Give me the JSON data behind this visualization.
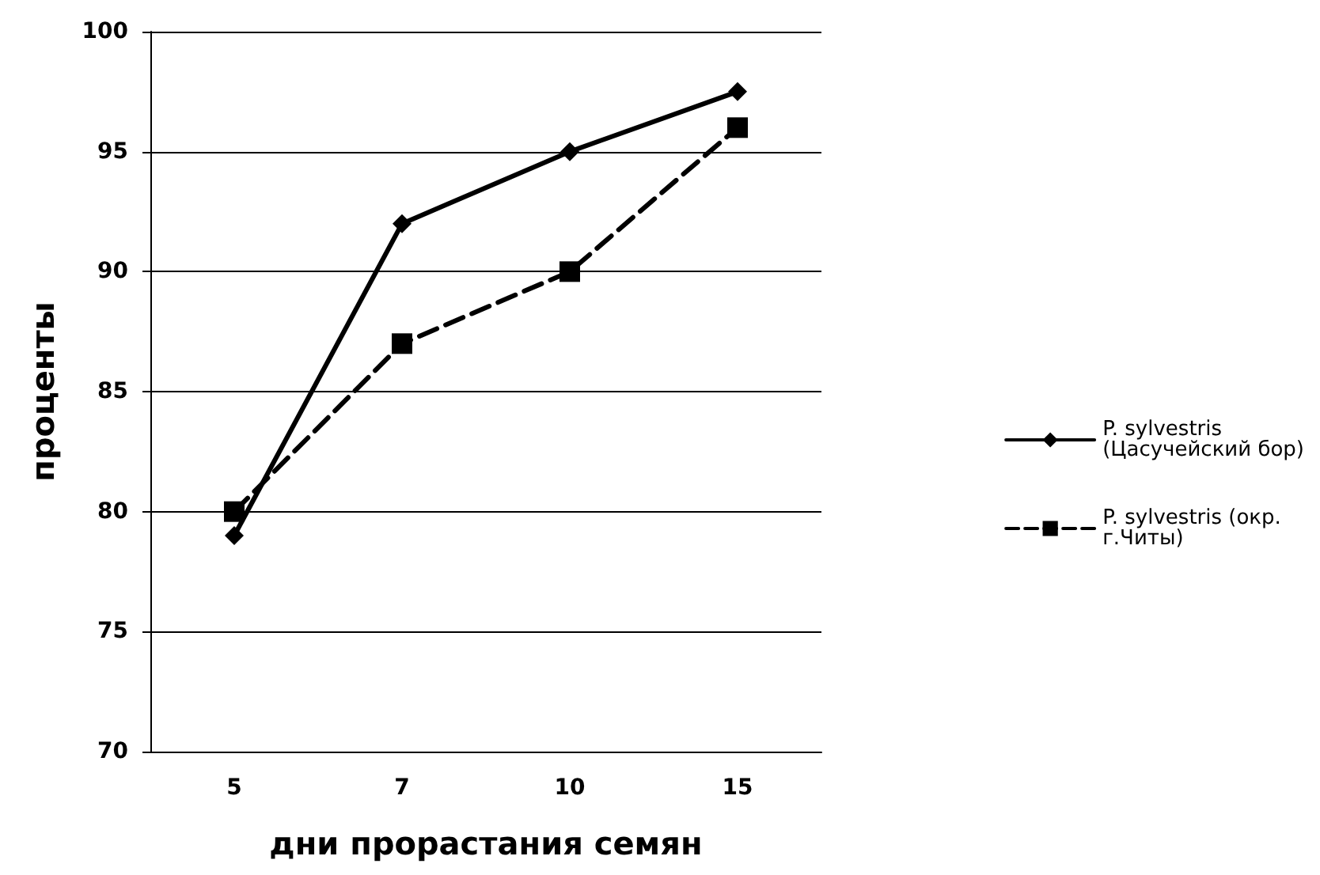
{
  "chart_data": {
    "type": "line",
    "xlabel": "дни прорастания семян",
    "ylabel": "проценты",
    "categories": [
      "5",
      "7",
      "10",
      "15"
    ],
    "series": [
      {
        "name": "P. sylvestris (Цасучейский бор)",
        "color": "#000000",
        "values": [
          79,
          92,
          95,
          97.5
        ],
        "marker": "diamond",
        "line_style": "solid"
      },
      {
        "name": "P. sylvestris (окр. г.Читы)",
        "color": "#000000",
        "values": [
          80,
          87,
          90,
          96
        ],
        "marker": "square",
        "line_style": "dashed"
      }
    ],
    "ylim": [
      70,
      100
    ],
    "yticks": [
      70,
      75,
      80,
      85,
      90,
      95,
      100
    ],
    "grid": "y",
    "legend": "right"
  }
}
